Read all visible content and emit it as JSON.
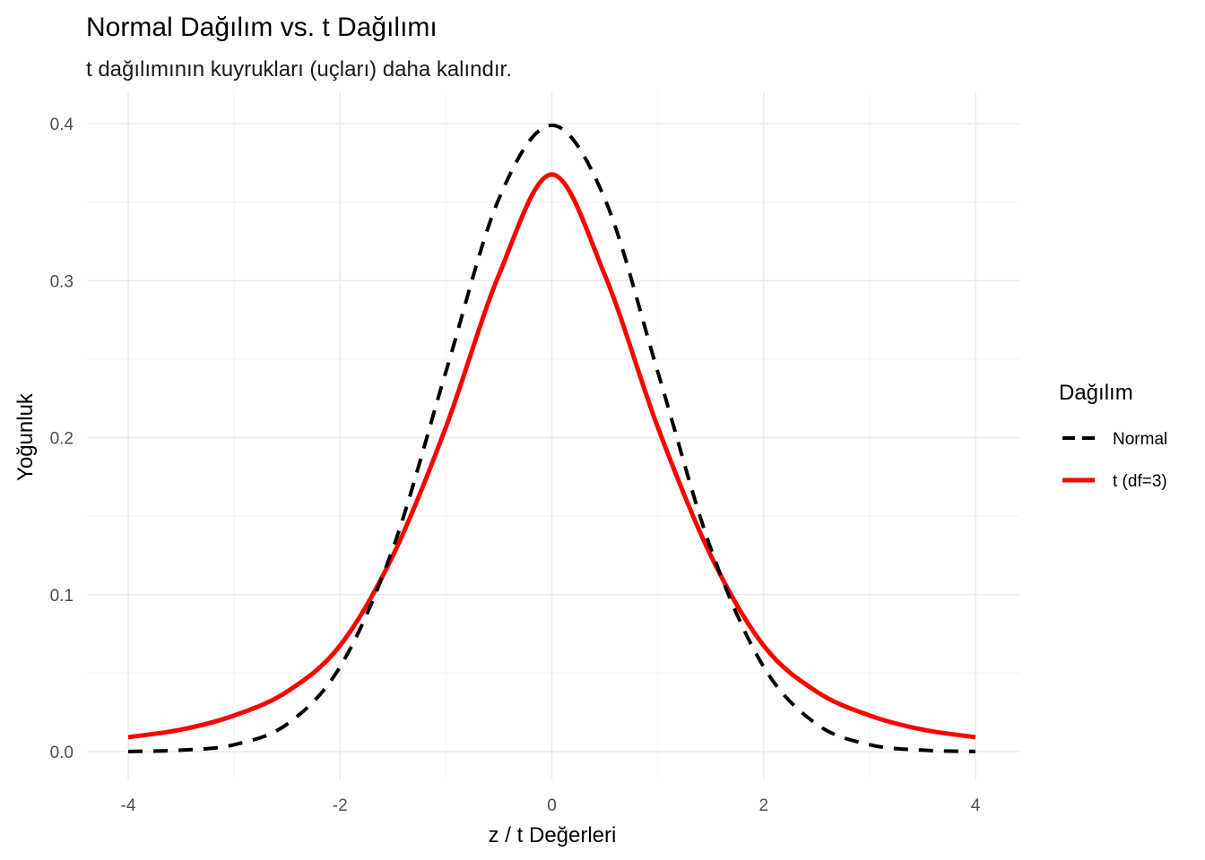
{
  "chart_data": {
    "type": "line",
    "title": "Normal Dağılım vs. t Dağılımı",
    "subtitle": "t dağılımının kuyrukları (uçları) daha kalındır.",
    "xlabel": "z / t Değerleri",
    "ylabel": "Yoğunluk",
    "xlim": [
      -4,
      4
    ],
    "ylim": [
      0,
      0.4
    ],
    "x_ticks": [
      -4,
      -2,
      0,
      2,
      4
    ],
    "y_ticks": [
      0.0,
      0.1,
      0.2,
      0.3,
      0.4
    ],
    "x_tick_labels": [
      "-4",
      "-2",
      "0",
      "2",
      "4"
    ],
    "y_tick_labels": [
      "0.0",
      "0.1",
      "0.2",
      "0.3",
      "0.4"
    ],
    "grid": true,
    "legend": {
      "title": "Dağılım",
      "position": "right"
    },
    "x": [
      -4.0,
      -3.5,
      -3.0,
      -2.5,
      -2.0,
      -1.5,
      -1.0,
      -0.5,
      0.0,
      0.5,
      1.0,
      1.5,
      2.0,
      2.5,
      3.0,
      3.5,
      4.0
    ],
    "series": [
      {
        "name": "Normal",
        "color": "#000000",
        "line_style": "dashed",
        "values": [
          0.0001,
          0.0009,
          0.0044,
          0.0175,
          0.054,
          0.1295,
          0.242,
          0.3521,
          0.3989,
          0.3521,
          0.242,
          0.1295,
          0.054,
          0.0175,
          0.0044,
          0.0009,
          0.0001
        ]
      },
      {
        "name": "t (df=3)",
        "color": "#ff0000",
        "line_style": "solid",
        "values": [
          0.0092,
          0.014,
          0.023,
          0.0382,
          0.0675,
          0.125,
          0.2067,
          0.3036,
          0.3676,
          0.3036,
          0.2067,
          0.125,
          0.0675,
          0.0382,
          0.023,
          0.014,
          0.0092
        ]
      }
    ]
  }
}
